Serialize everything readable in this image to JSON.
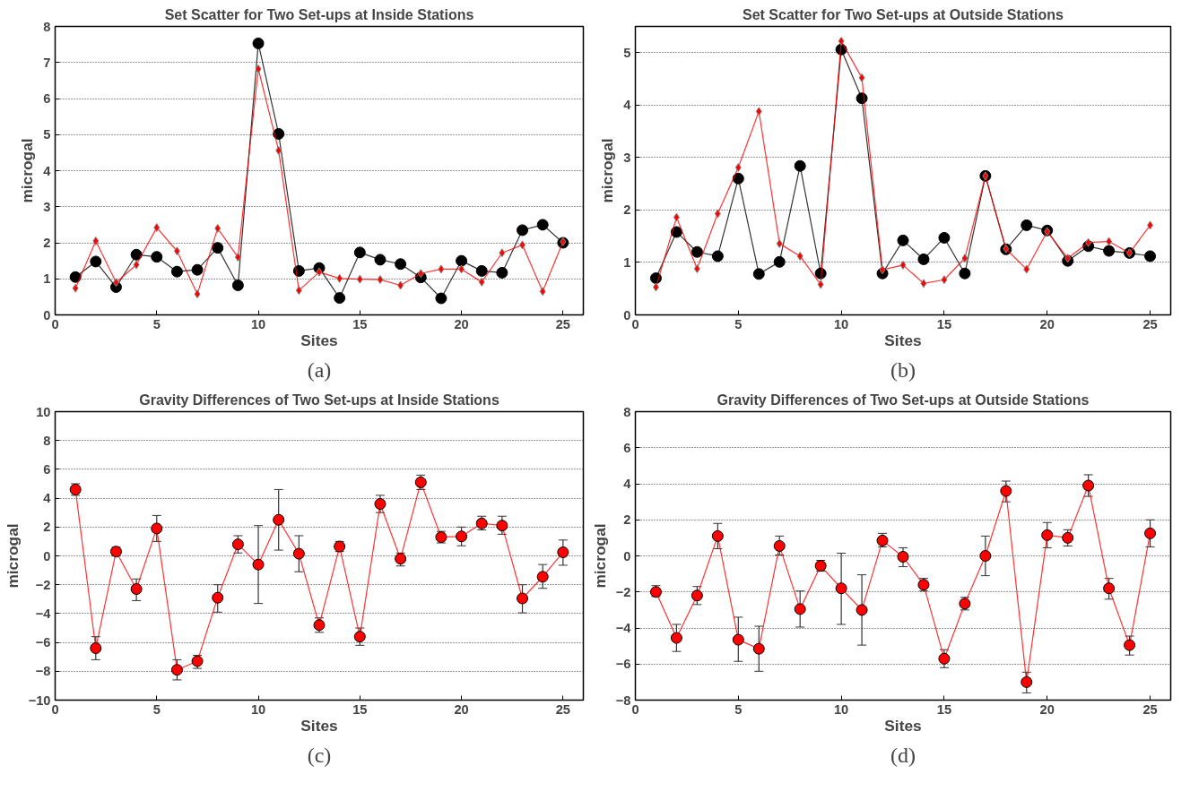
{
  "chart_data": [
    {
      "type": "line",
      "title": "Set Scatter for Two Set-ups at Inside Stations",
      "xlabel": "Sites",
      "ylabel": "microgal",
      "annotations": [
        "(a)"
      ],
      "xlim": [
        0,
        26
      ],
      "xticks": [
        0,
        5,
        10,
        15,
        20,
        25
      ],
      "ylim": [
        0,
        8
      ],
      "yticks": [
        0,
        1,
        2,
        3,
        4,
        5,
        6,
        7,
        8
      ],
      "grid": "y",
      "line_style": "solid",
      "x": [
        1,
        2,
        3,
        4,
        5,
        6,
        7,
        8,
        9,
        10,
        11,
        12,
        13,
        14,
        15,
        16,
        17,
        18,
        19,
        20,
        21,
        22,
        23,
        24,
        25
      ],
      "series": [
        {
          "color": "#ff0000",
          "marker": "diamond",
          "values": [
            0.74,
            2.05,
            0.9,
            1.39,
            2.42,
            1.77,
            0.58,
            2.4,
            1.6,
            6.82,
            4.56,
            0.68,
            1.19,
            1.01,
            0.99,
            0.98,
            0.82,
            1.15,
            1.27,
            1.27,
            0.91,
            1.72,
            1.94,
            0.65,
            2.03
          ]
        },
        {
          "color": "#000000",
          "marker": "circle",
          "values": [
            1.05,
            1.48,
            0.77,
            1.67,
            1.61,
            1.2,
            1.25,
            1.86,
            0.82,
            7.53,
            5.02,
            1.22,
            1.3,
            0.47,
            1.73,
            1.53,
            1.41,
            1.04,
            0.46,
            1.5,
            1.22,
            1.17,
            2.35,
            2.5,
            2.0
          ]
        }
      ]
    },
    {
      "type": "line",
      "title": "Set Scatter for Two Set-ups at Outside Stations",
      "xlabel": "Sites",
      "ylabel": "microgal",
      "annotations": [
        "(b)"
      ],
      "xlim": [
        0,
        26
      ],
      "xticks": [
        0,
        5,
        10,
        15,
        20,
        25
      ],
      "ylim": [
        0,
        5.5
      ],
      "yticks": [
        0,
        1,
        2,
        3,
        4,
        5
      ],
      "grid": "y",
      "line_style": "solid",
      "x": [
        1,
        2,
        3,
        4,
        5,
        6,
        7,
        8,
        9,
        10,
        11,
        12,
        13,
        14,
        15,
        16,
        17,
        18,
        19,
        20,
        21,
        22,
        23,
        24,
        25
      ],
      "series": [
        {
          "color": "#ff0000",
          "marker": "diamond",
          "values": [
            0.53,
            1.86,
            0.88,
            1.93,
            2.81,
            3.88,
            1.36,
            1.12,
            0.58,
            5.22,
            4.52,
            0.86,
            0.95,
            0.6,
            0.67,
            1.08,
            2.65,
            1.26,
            0.87,
            1.59,
            1.08,
            1.38,
            1.4,
            1.18,
            1.71
          ]
        },
        {
          "color": "#000000",
          "marker": "circle",
          "values": [
            0.7,
            1.58,
            1.2,
            1.12,
            2.6,
            0.78,
            1.01,
            2.84,
            0.79,
            5.06,
            4.13,
            0.79,
            1.42,
            1.06,
            1.47,
            0.79,
            2.65,
            1.25,
            1.71,
            1.61,
            1.03,
            1.31,
            1.22,
            1.18,
            1.12
          ]
        }
      ]
    },
    {
      "type": "line",
      "title": "Gravity Differences of Two Set-ups at Inside Stations",
      "xlabel": "Sites",
      "ylabel": "microgal",
      "annotations": [
        "(c)"
      ],
      "xlim": [
        0,
        26
      ],
      "xticks": [
        0,
        5,
        10,
        15,
        20,
        25
      ],
      "ylim": [
        -10,
        10
      ],
      "yticks": [
        -10,
        -8,
        -6,
        -4,
        -2,
        0,
        2,
        4,
        6,
        8,
        10
      ],
      "grid": "y",
      "line_style": "solid",
      "marker": "circle",
      "x": [
        1,
        2,
        3,
        4,
        5,
        6,
        7,
        8,
        9,
        10,
        11,
        12,
        13,
        14,
        15,
        16,
        17,
        18,
        19,
        20,
        21,
        22,
        23,
        24,
        25
      ],
      "series": [
        {
          "color": "#ff0000",
          "values": [
            4.6,
            -6.4,
            0.3,
            -2.3,
            1.9,
            -7.9,
            -7.3,
            -2.9,
            0.8,
            -0.6,
            2.5,
            0.15,
            -4.8,
            0.65,
            -5.6,
            3.6,
            -0.2,
            5.1,
            1.3,
            1.35,
            2.25,
            2.1,
            -2.95,
            -1.45,
            0.25
          ],
          "errors": [
            [
              4.2,
              5.0
            ],
            [
              -7.2,
              -5.6
            ],
            [
              0.0,
              0.6
            ],
            [
              -3.1,
              -1.6
            ],
            [
              1.0,
              2.8
            ],
            [
              -8.6,
              -7.2
            ],
            [
              -7.8,
              -6.9
            ],
            [
              -3.9,
              -2.0
            ],
            [
              0.2,
              1.4
            ],
            [
              -3.3,
              2.1
            ],
            [
              0.4,
              4.6
            ],
            [
              -1.1,
              1.4
            ],
            [
              -5.3,
              -4.3
            ],
            [
              0.3,
              1.0
            ],
            [
              -6.2,
              -5.0
            ],
            [
              3.0,
              4.2
            ],
            [
              -0.7,
              0.2
            ],
            [
              4.6,
              5.6
            ],
            [
              0.9,
              1.7
            ],
            [
              0.7,
              2.0
            ],
            [
              1.8,
              2.75
            ],
            [
              1.5,
              2.75
            ],
            [
              -3.95,
              -2.0
            ],
            [
              -2.25,
              -0.6
            ],
            [
              -0.65,
              1.1
            ]
          ]
        }
      ]
    },
    {
      "type": "line",
      "title": "Gravity Differences of Two Set-ups at Outside Stations",
      "xlabel": "Sites",
      "ylabel": "microgal",
      "annotations": [
        "(d)"
      ],
      "xlim": [
        0,
        26
      ],
      "xticks": [
        0,
        5,
        10,
        15,
        20,
        25
      ],
      "ylim": [
        -8,
        8
      ],
      "yticks": [
        -8,
        -6,
        -4,
        -2,
        0,
        2,
        4,
        6,
        8
      ],
      "grid": "y",
      "line_style": "solid",
      "marker": "circle",
      "x": [
        1,
        2,
        3,
        4,
        5,
        6,
        7,
        8,
        9,
        10,
        11,
        12,
        13,
        14,
        15,
        16,
        17,
        18,
        19,
        20,
        21,
        22,
        23,
        24,
        25
      ],
      "series": [
        {
          "color": "#ff0000",
          "values": [
            -2.0,
            -4.55,
            -2.2,
            1.1,
            -4.65,
            -5.15,
            0.55,
            -2.95,
            -0.55,
            -1.8,
            -3.0,
            0.85,
            -0.05,
            -1.6,
            -5.7,
            -2.65,
            0.0,
            3.6,
            -7.0,
            1.15,
            1.0,
            3.9,
            -1.8,
            -4.95,
            1.25
          ],
          "errors": [
            [
              -2.25,
              -1.65
            ],
            [
              -5.3,
              -3.8
            ],
            [
              -2.7,
              -1.7
            ],
            [
              0.4,
              1.8
            ],
            [
              -5.85,
              -3.4
            ],
            [
              -6.4,
              -3.9
            ],
            [
              0.05,
              1.1
            ],
            [
              -3.95,
              -1.95
            ],
            [
              -0.85,
              -0.25
            ],
            [
              -3.8,
              0.15
            ],
            [
              -4.95,
              -1.05
            ],
            [
              0.5,
              1.25
            ],
            [
              -0.6,
              0.45
            ],
            [
              -1.95,
              -1.25
            ],
            [
              -6.2,
              -5.2
            ],
            [
              -3.0,
              -2.3
            ],
            [
              -1.1,
              1.1
            ],
            [
              3.0,
              4.15
            ],
            [
              -7.6,
              -6.45
            ],
            [
              0.45,
              1.85
            ],
            [
              0.55,
              1.45
            ],
            [
              3.3,
              4.5
            ],
            [
              -2.4,
              -1.25
            ],
            [
              -5.5,
              -4.45
            ],
            [
              0.5,
              2.0
            ]
          ]
        }
      ]
    }
  ]
}
